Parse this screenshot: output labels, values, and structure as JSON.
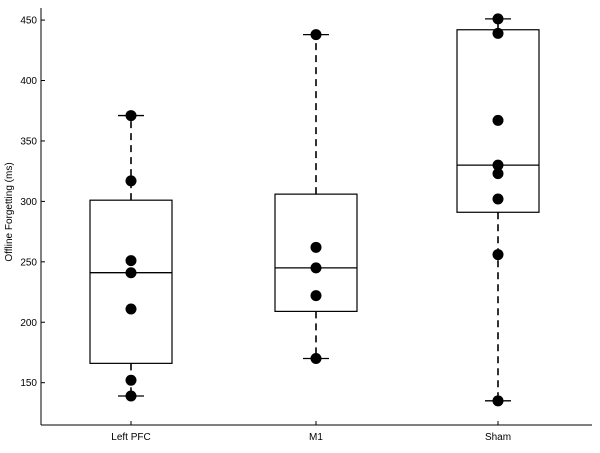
{
  "chart_data": {
    "type": "box",
    "title": "",
    "xlabel": "",
    "ylabel": "Offline Forgetting (ms)",
    "ylim": [
      115,
      460
    ],
    "yticks": [
      150,
      200,
      250,
      300,
      350,
      400,
      450
    ],
    "grid": false,
    "categories": [
      "Left PFC",
      "M1",
      "Sham"
    ],
    "boxes": [
      {
        "category": "Left PFC",
        "whisker_low": 139,
        "q1": 166,
        "median": 241,
        "q3": 301,
        "whisker_high": 371,
        "points": [
          371,
          317,
          251,
          241,
          211,
          152,
          139
        ]
      },
      {
        "category": "M1",
        "whisker_low": 170,
        "q1": 209,
        "median": 245,
        "q3": 306,
        "whisker_high": 438,
        "points": [
          438,
          262,
          245,
          222,
          170
        ]
      },
      {
        "category": "Sham",
        "whisker_low": 135,
        "q1": 291,
        "median": 330,
        "q3": 442,
        "whisker_high": 451,
        "points": [
          451,
          439,
          367,
          330,
          323,
          302,
          256,
          135
        ]
      }
    ]
  },
  "colors": {
    "points": "#000000",
    "lines": "#000000",
    "background": "#ffffff"
  }
}
